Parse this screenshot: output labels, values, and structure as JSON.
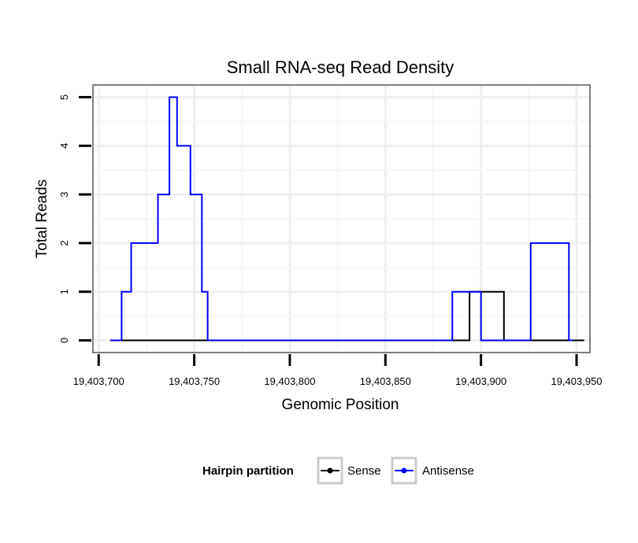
{
  "chart_data": {
    "type": "line",
    "title": "Small RNA-seq Read Density",
    "xlabel": "Genomic Position",
    "ylabel": "Total Reads",
    "xlim": [
      19403697,
      19403957
    ],
    "ylim": [
      -0.25,
      5.25
    ],
    "x_ticks": [
      19403700,
      19403750,
      19403800,
      19403850,
      19403900,
      19403950
    ],
    "x_tick_labels": [
      "19,403,700",
      "19,403,750",
      "19,403,800",
      "19,403,850",
      "19,403,900",
      "19,403,950"
    ],
    "y_ticks": [
      0,
      1,
      2,
      3,
      4,
      5
    ],
    "y_tick_labels": [
      "0",
      "1",
      "2",
      "3",
      "4",
      "5"
    ],
    "grid": true,
    "legend": {
      "title": "Hairpin partition",
      "position": "bottom",
      "entries": [
        "Sense",
        "Antisense"
      ]
    },
    "series": [
      {
        "name": "Sense",
        "color": "#000000",
        "step": "post",
        "x": [
          19403706,
          19403893,
          19403894,
          19403911,
          19403912,
          19403954
        ],
        "values": [
          0,
          0,
          1,
          1,
          0,
          0
        ]
      },
      {
        "name": "Antisense",
        "color": "#0000ff",
        "step": "post",
        "x": [
          19403706,
          19403711,
          19403712,
          19403716,
          19403717,
          19403730,
          19403731,
          19403736,
          19403737,
          19403740,
          19403741,
          19403747,
          19403748,
          19403753,
          19403754,
          19403756,
          19403757,
          19403884,
          19403885,
          19403899,
          19403900,
          19403925,
          19403926,
          19403945,
          19403946,
          19403948
        ],
        "values": [
          0,
          0,
          1,
          1,
          2,
          2,
          3,
          3,
          5,
          5,
          4,
          4,
          3,
          3,
          1,
          1,
          0,
          0,
          1,
          1,
          0,
          0,
          2,
          2,
          0,
          0
        ]
      }
    ]
  }
}
